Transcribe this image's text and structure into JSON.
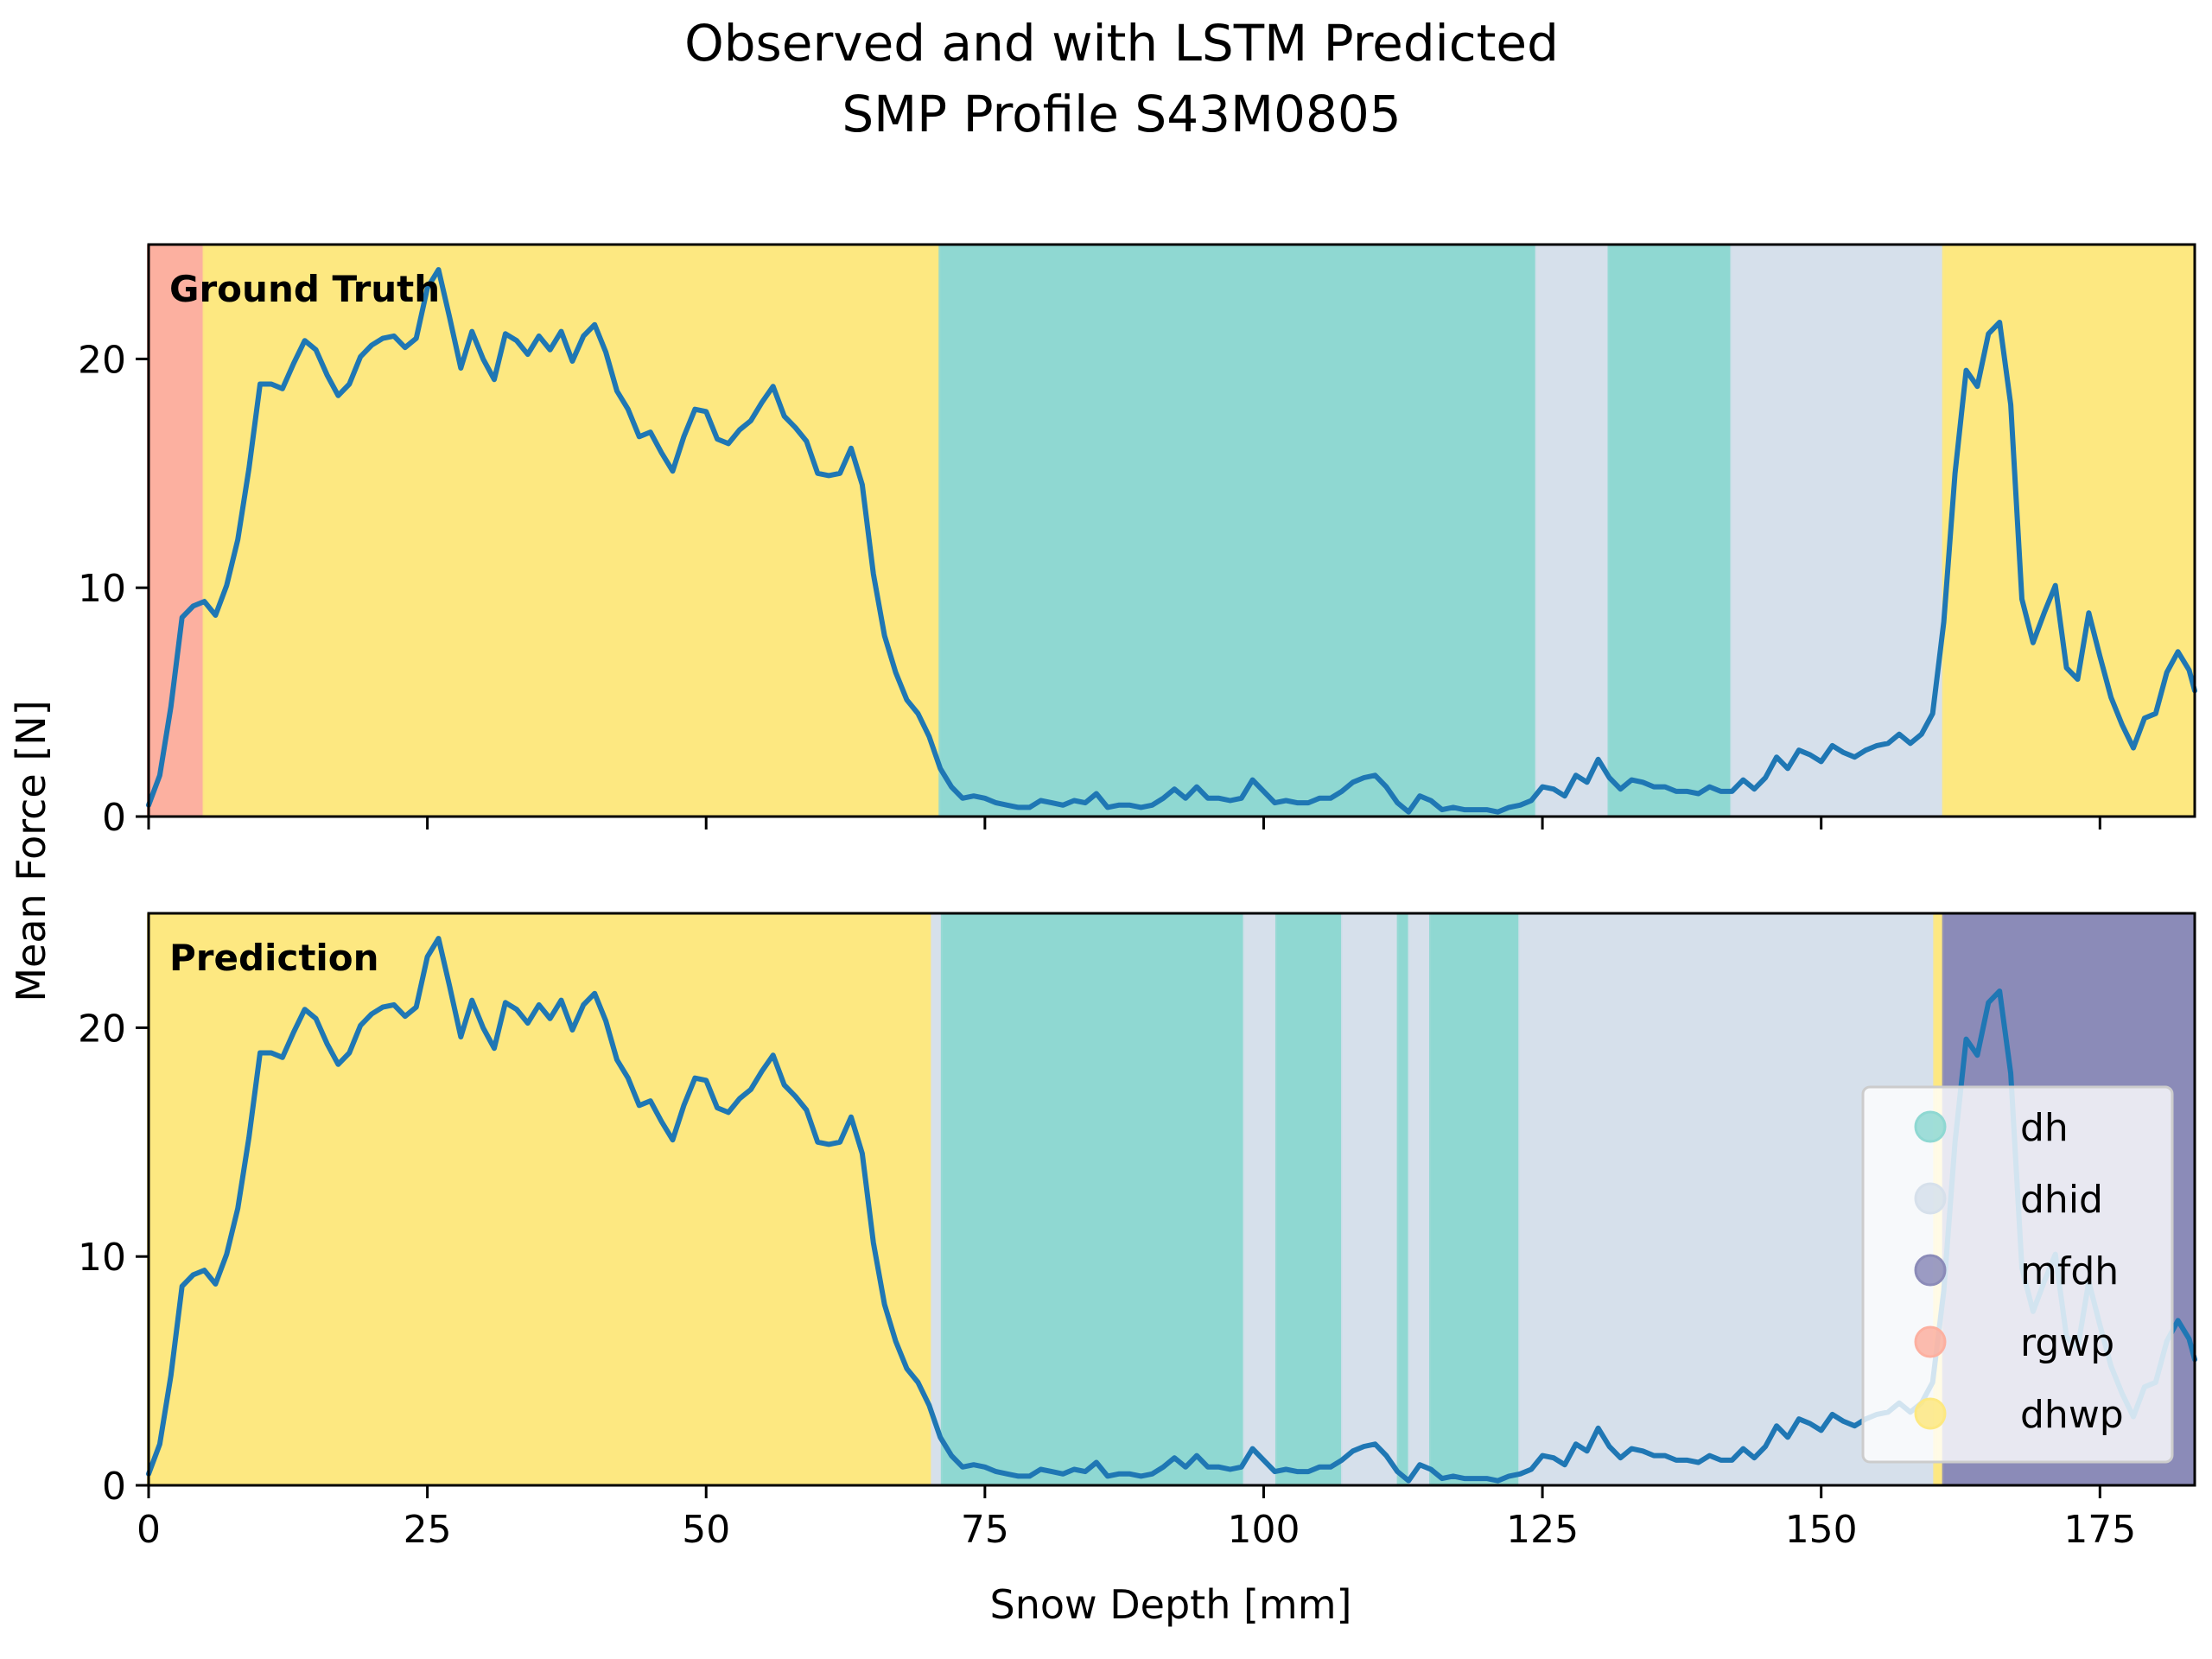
{
  "chart_data": {
    "type": "line",
    "title": "Observed and with LSTM Predicted\nSMP Profile S43M0805",
    "title_lines": [
      "Observed and with LSTM Predicted",
      "SMP Profile S43M0805"
    ],
    "xlabel": "Snow Depth [mm]",
    "ylabel": "Mean Force [N]",
    "xlim": [
      0,
      183.5
    ],
    "ylim": [
      0,
      25
    ],
    "xticks": [
      0,
      25,
      50,
      75,
      100,
      125,
      150,
      175
    ],
    "yticks": [
      0,
      10,
      20
    ],
    "grid": false,
    "line_color": "#1f77b4",
    "x": [
      0,
      1,
      2,
      3,
      4,
      5,
      6,
      7,
      8,
      9,
      10,
      11,
      12,
      13,
      14,
      15,
      16,
      17,
      18,
      19,
      20,
      21,
      22,
      23,
      24,
      25,
      26,
      27,
      28,
      29,
      30,
      31,
      32,
      33,
      34,
      35,
      36,
      37,
      38,
      39,
      40,
      41,
      42,
      43,
      44,
      45,
      46,
      47,
      48,
      49,
      50,
      51,
      52,
      53,
      54,
      55,
      56,
      57,
      58,
      59,
      60,
      61,
      62,
      63,
      64,
      65,
      66,
      67,
      68,
      69,
      70,
      71,
      72,
      73,
      74,
      75,
      76,
      77,
      78,
      79,
      80,
      81,
      82,
      83,
      84,
      85,
      86,
      87,
      88,
      89,
      90,
      91,
      92,
      93,
      94,
      95,
      96,
      97,
      98,
      99,
      100,
      101,
      102,
      103,
      104,
      105,
      106,
      107,
      108,
      109,
      110,
      111,
      112,
      113,
      114,
      115,
      116,
      117,
      118,
      119,
      120,
      121,
      122,
      123,
      124,
      125,
      126,
      127,
      128,
      129,
      130,
      131,
      132,
      133,
      134,
      135,
      136,
      137,
      138,
      139,
      140,
      141,
      142,
      143,
      144,
      145,
      146,
      147,
      148,
      149,
      150,
      151,
      152,
      153,
      154,
      155,
      156,
      157,
      158,
      159,
      160,
      161,
      162,
      163,
      164,
      165,
      166,
      167,
      168,
      169,
      170,
      171,
      172,
      173,
      174,
      175,
      176,
      177,
      178,
      179,
      180,
      181,
      182,
      183,
      183.5
    ],
    "y": [
      0.5,
      1.8,
      4.8,
      8.7,
      9.2,
      9.4,
      8.8,
      10.1,
      12.1,
      15.2,
      18.9,
      18.9,
      18.7,
      19.8,
      20.8,
      20.4,
      19.3,
      18.4,
      18.9,
      20.1,
      20.6,
      20.9,
      21.0,
      20.5,
      20.9,
      23.1,
      23.9,
      21.8,
      19.6,
      21.2,
      20.0,
      19.1,
      21.1,
      20.8,
      20.2,
      21.0,
      20.4,
      21.2,
      19.9,
      21.0,
      21.5,
      20.3,
      18.6,
      17.8,
      16.6,
      16.8,
      15.9,
      15.1,
      16.6,
      17.8,
      17.7,
      16.5,
      16.3,
      16.9,
      17.3,
      18.1,
      18.8,
      17.5,
      17.0,
      16.4,
      15.0,
      14.9,
      15.0,
      16.1,
      14.5,
      10.6,
      7.9,
      6.3,
      5.1,
      4.5,
      3.5,
      2.1,
      1.3,
      0.8,
      0.9,
      0.8,
      0.6,
      0.5,
      0.4,
      0.4,
      0.7,
      0.6,
      0.5,
      0.7,
      0.6,
      1.0,
      0.4,
      0.5,
      0.5,
      0.4,
      0.5,
      0.8,
      1.2,
      0.8,
      1.3,
      0.8,
      0.8,
      0.7,
      0.8,
      1.6,
      1.1,
      0.6,
      0.7,
      0.6,
      0.6,
      0.8,
      0.8,
      1.1,
      1.5,
      1.7,
      1.8,
      1.3,
      0.6,
      0.2,
      0.9,
      0.7,
      0.3,
      0.4,
      0.3,
      0.3,
      0.3,
      0.2,
      0.4,
      0.5,
      0.7,
      1.3,
      1.2,
      0.9,
      1.8,
      1.5,
      2.5,
      1.7,
      1.2,
      1.6,
      1.5,
      1.3,
      1.3,
      1.1,
      1.1,
      1.0,
      1.3,
      1.1,
      1.1,
      1.6,
      1.2,
      1.7,
      2.6,
      2.1,
      2.9,
      2.7,
      2.4,
      3.1,
      2.8,
      2.6,
      2.9,
      3.1,
      3.2,
      3.6,
      3.2,
      3.6,
      4.5,
      8.5,
      15.0,
      19.5,
      18.8,
      21.1,
      21.6,
      18.0,
      9.5,
      7.6,
      8.9,
      10.1,
      6.5,
      6.0,
      8.9,
      7.0,
      5.2,
      4.0,
      3.0,
      4.3,
      4.5,
      6.3,
      7.2,
      6.4,
      5.5
    ],
    "classes": [
      {
        "name": "dh",
        "color": "#8fd8d2"
      },
      {
        "name": "dhid",
        "color": "#d6e0eb"
      },
      {
        "name": "mfdh",
        "color": "#8b8bb8"
      },
      {
        "name": "rgwp",
        "color": "#fcb0a0"
      },
      {
        "name": "dhwp",
        "color": "#fde881"
      }
    ],
    "panels": [
      {
        "label": "Ground Truth",
        "segments": [
          {
            "class": "rgwp",
            "start": 0,
            "end": 5
          },
          {
            "class": "dhwp",
            "start": 5,
            "end": 71
          },
          {
            "class": "dh",
            "start": 71,
            "end": 124.5
          },
          {
            "class": "dhid",
            "start": 124.5,
            "end": 131
          },
          {
            "class": "dh",
            "start": 131,
            "end": 142
          },
          {
            "class": "dhid",
            "start": 142,
            "end": 161
          },
          {
            "class": "dhwp",
            "start": 161,
            "end": 183.5
          }
        ]
      },
      {
        "label": "Prediction",
        "segments": [
          {
            "class": "dhwp",
            "start": 0,
            "end": 70.3
          },
          {
            "class": "dhid",
            "start": 70.3,
            "end": 71.2
          },
          {
            "class": "dh",
            "start": 71.2,
            "end": 98.3
          },
          {
            "class": "dhid",
            "start": 98.3,
            "end": 101.2
          },
          {
            "class": "dh",
            "start": 101.2,
            "end": 107.1
          },
          {
            "class": "dhid",
            "start": 107.1,
            "end": 112.1
          },
          {
            "class": "dh",
            "start": 112.1,
            "end": 113.1
          },
          {
            "class": "dhid",
            "start": 113.1,
            "end": 115.0
          },
          {
            "class": "dh",
            "start": 115.0,
            "end": 123.0
          },
          {
            "class": "dhid",
            "start": 123.0,
            "end": 160.2
          },
          {
            "class": "dhwp",
            "start": 160.2,
            "end": 161.0
          },
          {
            "class": "mfdh",
            "start": 161.0,
            "end": 183.5
          }
        ]
      }
    ],
    "legend": {
      "placement": "lower-right of Prediction panel",
      "entries": [
        "dh",
        "dhid",
        "mfdh",
        "rgwp",
        "dhwp"
      ]
    }
  }
}
